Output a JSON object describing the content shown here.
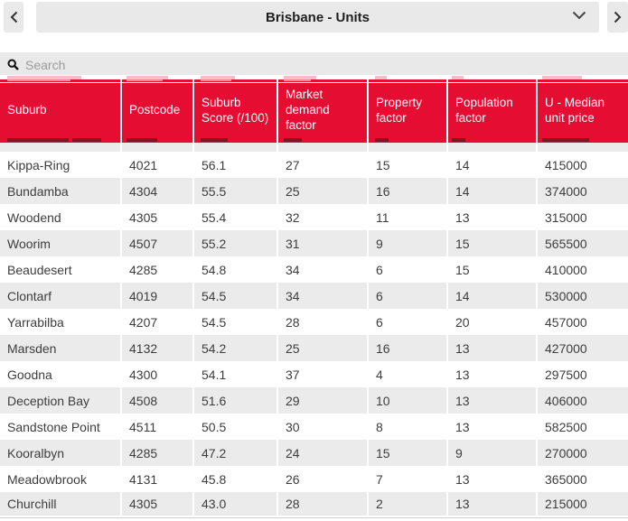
{
  "nav": {
    "title": "Brisbane - Units",
    "prev_icon": "chevron-left",
    "next_icon": "chevron-right",
    "dropdown_icon": "chevron-down"
  },
  "search": {
    "placeholder": "Search"
  },
  "colors": {
    "header_red": "#e60d32",
    "row_alt_gray": "#ebebeb",
    "control_gray": "#e9e9e9",
    "body_text": "#3d3d3d"
  },
  "table": {
    "columns": [
      {
        "key": "suburb",
        "label": "Suburb"
      },
      {
        "key": "postcode",
        "label": "Postcode"
      },
      {
        "key": "suburb_score",
        "label": "Suburb Score (/100)"
      },
      {
        "key": "market_demand",
        "label": "Market demand factor"
      },
      {
        "key": "property_factor",
        "label": "Property factor"
      },
      {
        "key": "population_factor",
        "label": "Population factor"
      },
      {
        "key": "median_unit_price",
        "label": "U - Median unit price"
      }
    ],
    "rows": [
      [
        "Kippa-Ring",
        "4021",
        "56.1",
        "27",
        "15",
        "14",
        "415000"
      ],
      [
        "Bundamba",
        "4304",
        "55.5",
        "25",
        "16",
        "14",
        "374000"
      ],
      [
        "Woodend",
        "4305",
        "55.4",
        "32",
        "11",
        "13",
        "315000"
      ],
      [
        "Woorim",
        "4507",
        "55.2",
        "31",
        "9",
        "15",
        "565500"
      ],
      [
        "Beaudesert",
        "4285",
        "54.8",
        "34",
        "6",
        "15",
        "410000"
      ],
      [
        "Clontarf",
        "4019",
        "54.5",
        "34",
        "6",
        "14",
        "530000"
      ],
      [
        "Yarrabilba",
        "4207",
        "54.5",
        "28",
        "6",
        "20",
        "457000"
      ],
      [
        "Marsden",
        "4132",
        "54.2",
        "25",
        "16",
        "13",
        "427000"
      ],
      [
        "Goodna",
        "4300",
        "54.1",
        "37",
        "4",
        "13",
        "297500"
      ],
      [
        "Deception Bay",
        "4508",
        "51.6",
        "29",
        "10",
        "13",
        "406000"
      ],
      [
        "Sandstone Point",
        "4511",
        "50.5",
        "30",
        "8",
        "13",
        "582500"
      ],
      [
        "Kooralbyn",
        "4285",
        "47.2",
        "24",
        "15",
        "9",
        "270000"
      ],
      [
        "Meadowbrook",
        "4131",
        "45.8",
        "26",
        "7",
        "13",
        "365000"
      ],
      [
        "Churchill",
        "4305",
        "43.0",
        "28",
        "2",
        "13",
        "215000"
      ]
    ]
  }
}
